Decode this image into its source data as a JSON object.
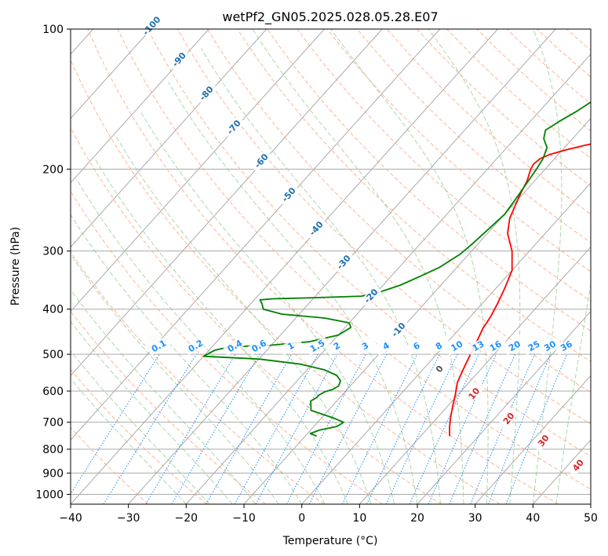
{
  "chart_data": {
    "type": "line",
    "subtype": "skew-t log-p",
    "title": "wetPf2_GN05.2025.028.05.28.E07",
    "xlabel": "Temperature (°C)",
    "ylabel": "Pressure (hPa)",
    "xlim": [
      -40,
      50
    ],
    "ylim": [
      1050,
      100
    ],
    "yscale": "log",
    "grid": true,
    "x_ticks": [
      "−40",
      "−30",
      "−20",
      "−10",
      "0",
      "10",
      "20",
      "30",
      "40",
      "50"
    ],
    "y_ticks": [
      "100",
      "200",
      "300",
      "400",
      "500",
      "600",
      "700",
      "800",
      "900",
      "1000"
    ],
    "series": [
      {
        "color": "#ff0000",
        "points": [
          [
            15,
            750
          ],
          [
            13.5,
            715
          ],
          [
            12.5,
            690
          ],
          [
            11,
            650
          ],
          [
            9.5,
            610
          ],
          [
            8,
            575
          ],
          [
            7,
            540
          ],
          [
            6,
            505
          ],
          [
            5,
            470
          ],
          [
            4,
            440
          ],
          [
            3.5,
            415
          ],
          [
            2.7,
            390
          ],
          [
            1.5,
            360
          ],
          [
            0,
            330
          ],
          [
            -3,
            300
          ],
          [
            -6.5,
            275
          ],
          [
            -8.5,
            255
          ],
          [
            -9.5,
            240
          ],
          [
            -10.5,
            225
          ],
          [
            -11.3,
            212
          ],
          [
            -12,
            205
          ],
          [
            -12.5,
            200
          ],
          [
            -12.8,
            195
          ],
          [
            -12.5,
            190
          ],
          [
            -11.5,
            186
          ],
          [
            -9.5,
            182
          ],
          [
            -7,
            178
          ],
          [
            -4,
            174
          ],
          [
            -2,
            170
          ],
          [
            0,
            165
          ],
          [
            2,
            158
          ],
          [
            4,
            150
          ],
          [
            6,
            143
          ],
          [
            8,
            136
          ],
          [
            10,
            130
          ],
          [
            12,
            124
          ],
          [
            14,
            118
          ],
          [
            16,
            112
          ],
          [
            16.5,
            110
          ],
          [
            17.5,
            105
          ],
          [
            19,
            100
          ]
        ]
      },
      {
        "color": "#008000",
        "points": [
          [
            -8,
            750
          ],
          [
            -9.5,
            740
          ],
          [
            -8.5,
            728
          ],
          [
            -6,
            715
          ],
          [
            -5.5,
            700
          ],
          [
            -8,
            685
          ],
          [
            -13,
            660
          ],
          [
            -14,
            640
          ],
          [
            -14.5,
            630
          ],
          [
            -14,
            620
          ],
          [
            -14,
            612
          ],
          [
            -13.5,
            602
          ],
          [
            -12.5,
            595
          ],
          [
            -12,
            585
          ],
          [
            -12.5,
            570
          ],
          [
            -14,
            555
          ],
          [
            -17,
            540
          ],
          [
            -22,
            525
          ],
          [
            -30,
            512
          ],
          [
            -40,
            505
          ],
          [
            -39,
            490
          ],
          [
            -37,
            482
          ],
          [
            -30,
            478
          ],
          [
            -24,
            470
          ],
          [
            -20,
            455
          ],
          [
            -19,
            438
          ],
          [
            -20,
            428
          ],
          [
            -25,
            418
          ],
          [
            -33,
            410
          ],
          [
            -37,
            400
          ],
          [
            -38,
            390
          ],
          [
            -39,
            382
          ],
          [
            -37,
            380
          ],
          [
            -30,
            378
          ],
          [
            -22,
            375
          ],
          [
            -19,
            365
          ],
          [
            -17,
            355
          ],
          [
            -15,
            340
          ],
          [
            -13,
            325
          ],
          [
            -11.5,
            305
          ],
          [
            -11,
            290
          ],
          [
            -10.5,
            270
          ],
          [
            -10,
            250
          ],
          [
            -10.5,
            230
          ],
          [
            -11,
            215
          ],
          [
            -11.5,
            200
          ],
          [
            -12,
            190
          ],
          [
            -13,
            180
          ],
          [
            -15,
            172
          ],
          [
            -16,
            165
          ],
          [
            -15,
            158
          ],
          [
            -13.5,
            150
          ],
          [
            -12,
            140
          ],
          [
            -10.5,
            130
          ],
          [
            -8.5,
            120
          ],
          [
            -6.5,
            110
          ],
          [
            -5,
            103
          ],
          [
            -4,
            100
          ]
        ]
      }
    ],
    "dry_adiabat_labels": [
      "-100",
      "-90",
      "-80",
      "-70",
      "-60",
      "-50",
      "-40",
      "-30",
      "-20",
      "-10"
    ],
    "mixing_ratio_labels": [
      "0.1",
      "0.2",
      "0.4",
      "0.6",
      "1",
      "1.5",
      "2",
      "3",
      "4",
      "6",
      "8",
      "10",
      "13",
      "16",
      "20",
      "25",
      "30",
      "36"
    ],
    "moist_adiabat_labels": [
      "0",
      "10",
      "20",
      "30",
      "40"
    ],
    "colors": {
      "temperature": "#ff0000",
      "dewpoint": "#008000",
      "isotherm": "#999999",
      "dry_adiabat": "#ffa07a",
      "moist_adiabat": "#8fc98f",
      "mixing_ratio": "#1e90ff",
      "dry_label": "#1f6fb0",
      "mixing_label": "#1e90ff",
      "moist_label": "#d62728",
      "zero_label": "#555555"
    }
  }
}
